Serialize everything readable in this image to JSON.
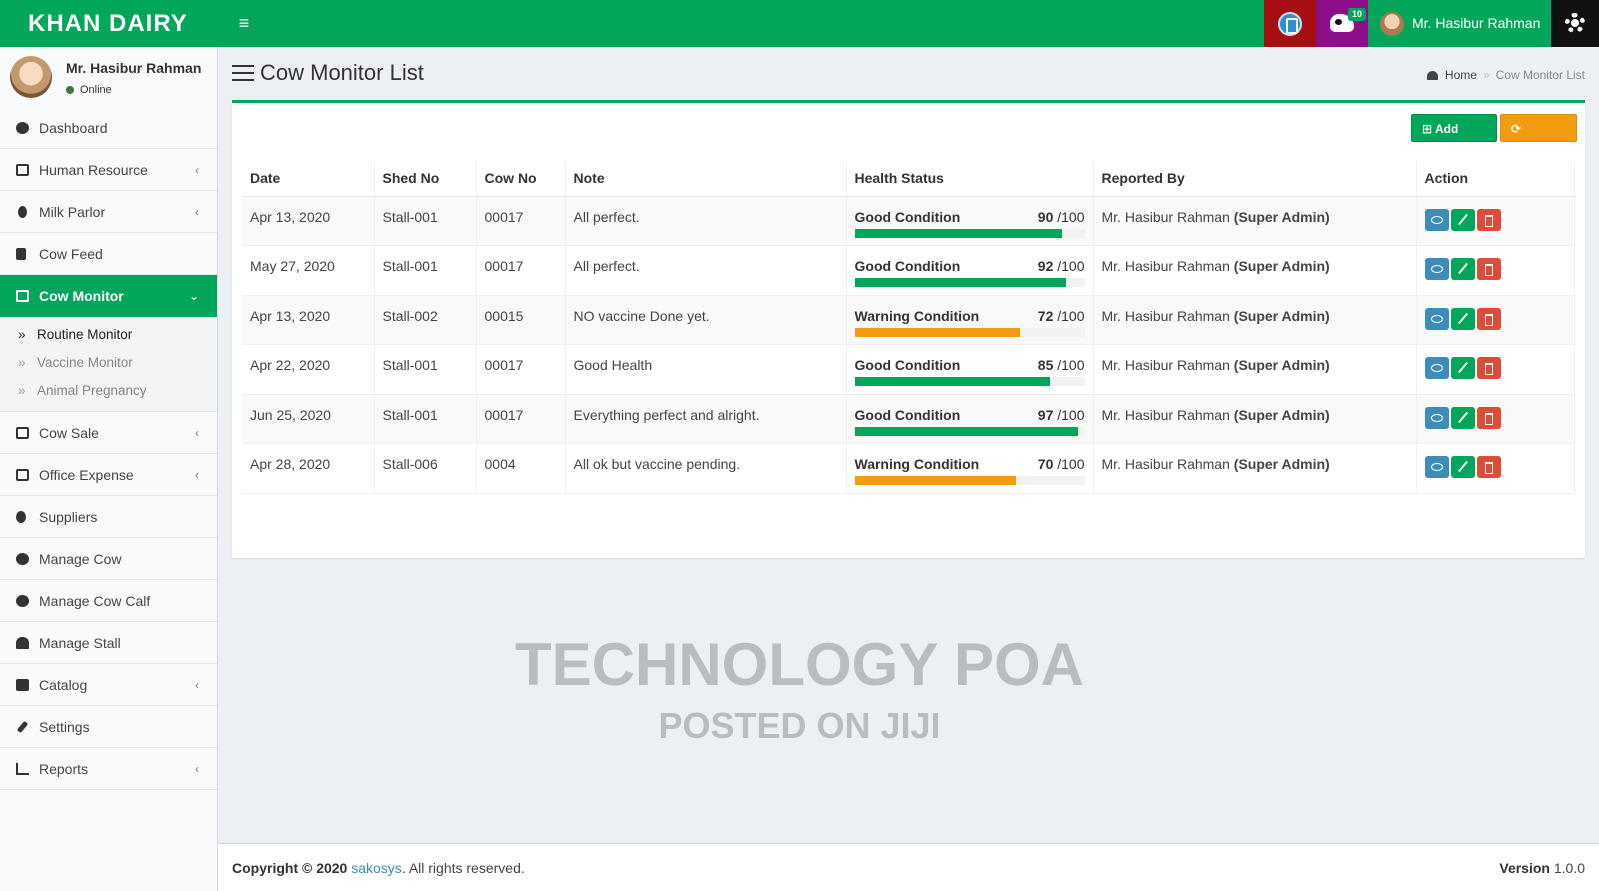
{
  "header": {
    "logo": "KHAN DAIRY",
    "menu_toggle": "≡",
    "notification_count": "10",
    "user_name": "Mr. Hasibur Rahman",
    "icons": [
      "calculator-icon",
      "cow-icon",
      "gear-icon"
    ],
    "colors": {
      "brand": "#00a65a",
      "calculator_bg": "#a80f12",
      "cow_bg": "#8e0e8a",
      "gear_bg": "#111111"
    }
  },
  "sidebar": {
    "user_name": "Mr. Hasibur Rahman",
    "status": "Online",
    "items": [
      {
        "label": "Dashboard",
        "icon": "dashboard-icon"
      },
      {
        "label": "Human Resource",
        "icon": "user-icon",
        "chevron": "‹"
      },
      {
        "label": "Milk Parlor",
        "icon": "drop-icon",
        "chevron": "‹"
      },
      {
        "label": "Cow Feed",
        "icon": "cutlery-icon"
      },
      {
        "label": "Cow Monitor",
        "icon": "monitor-icon",
        "chevron": "⌄"
      },
      {
        "label": "Cow Sale",
        "icon": "money-icon",
        "chevron": "‹"
      },
      {
        "label": "Office Expense",
        "icon": "money-icon",
        "chevron": "‹"
      },
      {
        "label": "Suppliers",
        "icon": "user-icon"
      },
      {
        "label": "Manage Cow",
        "icon": "paw-icon"
      },
      {
        "label": "Manage Cow Calf",
        "icon": "paw-icon"
      },
      {
        "label": "Manage Stall",
        "icon": "home-icon"
      },
      {
        "label": "Catalog",
        "icon": "grid-icon",
        "chevron": "‹"
      },
      {
        "label": "Settings",
        "icon": "wrench-icon"
      },
      {
        "label": "Reports",
        "icon": "bar-chart-icon",
        "chevron": "‹"
      }
    ],
    "sub_items": [
      "Routine Monitor",
      "Vaccine Monitor",
      "Animal Pregnancy"
    ]
  },
  "page": {
    "title": "Cow Monitor List",
    "breadcrumb_home": "Home",
    "breadcrumb_sep": "»",
    "breadcrumb_current": "Cow Monitor List",
    "add_button": "⊞ Add New",
    "refresh_button": "⟳ Refresh"
  },
  "table": {
    "headers": [
      "Date",
      "Shed No",
      "Cow No",
      "Note",
      "Health Status",
      "Reported By",
      "Action"
    ],
    "max_label": "/100",
    "rows": [
      {
        "date": "Apr 13, 2020",
        "shed": "Stall-001",
        "cow": "00017",
        "note": "All perfect.",
        "status": "Good Condition",
        "score": 90,
        "reporter": "Mr. Hasibur Rahman",
        "role": "(Super Admin)",
        "bar_color": "#00a65a"
      },
      {
        "date": "May 27, 2020",
        "shed": "Stall-001",
        "cow": "00017",
        "note": "All perfect.",
        "status": "Good Condition",
        "score": 92,
        "reporter": "Mr. Hasibur Rahman",
        "role": "(Super Admin)",
        "bar_color": "#00a65a"
      },
      {
        "date": "Apr 13, 2020",
        "shed": "Stall-002",
        "cow": "00015",
        "note": "NO vaccine Done yet.",
        "status": "Warning Condition",
        "score": 72,
        "reporter": "Mr. Hasibur Rahman",
        "role": "(Super Admin)",
        "bar_color": "#f39c12"
      },
      {
        "date": "Apr 22, 2020",
        "shed": "Stall-001",
        "cow": "00017",
        "note": "Good Health",
        "status": "Good Condition",
        "score": 85,
        "reporter": "Mr. Hasibur Rahman",
        "role": "(Super Admin)",
        "bar_color": "#00a65a"
      },
      {
        "date": "Jun 25, 2020",
        "shed": "Stall-001",
        "cow": "00017",
        "note": "Everything perfect and alright.",
        "status": "Good Condition",
        "score": 97,
        "reporter": "Mr. Hasibur Rahman",
        "role": "(Super Admin)",
        "bar_color": "#00a65a"
      },
      {
        "date": "Apr 28, 2020",
        "shed": "Stall-006",
        "cow": "0004",
        "note": "All ok but vaccine pending.",
        "status": "Warning Condition",
        "score": 70,
        "reporter": "Mr. Hasibur Rahman",
        "role": "(Super Admin)",
        "bar_color": "#f39c12"
      }
    ]
  },
  "watermark": {
    "line1": "TECHNOLOGY POA",
    "line2": "POSTED ON JIJI"
  },
  "footer": {
    "copyright_prefix": "Copyright © 2020",
    "company": "sakosys",
    "suffix": ". All rights reserved.",
    "version_label": "Version",
    "version": "1.0.0"
  }
}
